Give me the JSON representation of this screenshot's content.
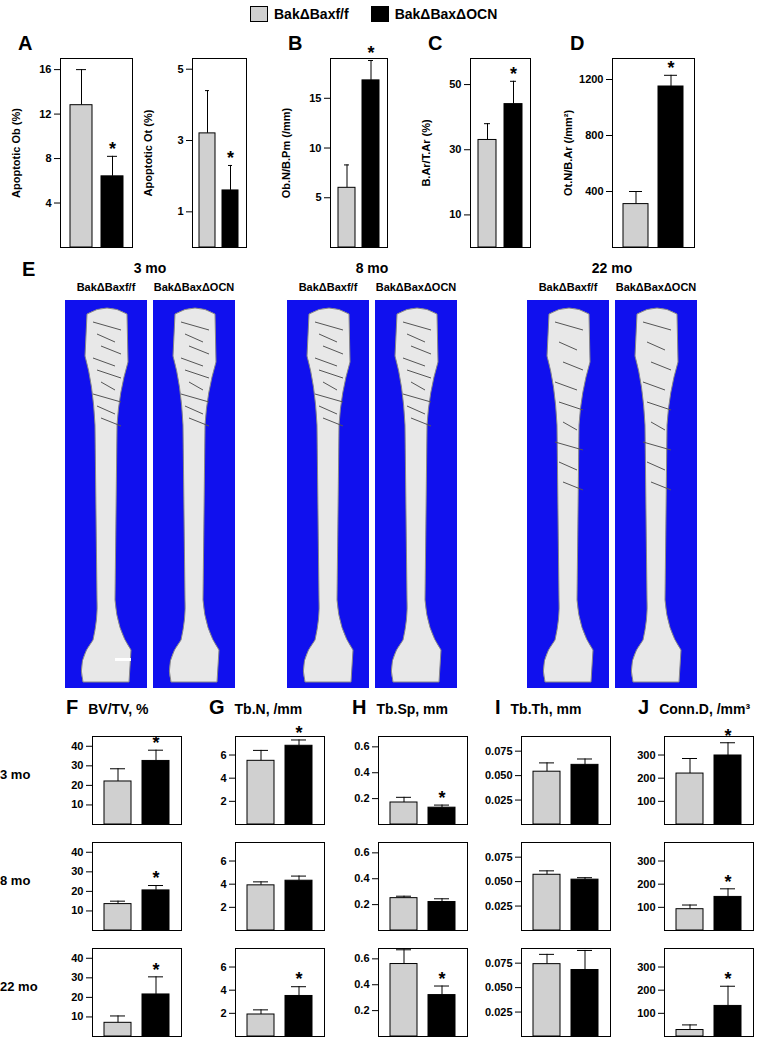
{
  "figure": {
    "legend": [
      {
        "name": "BakΔBaxf/f",
        "color": "#d0d0d0"
      },
      {
        "name": "BakΔBaxΔOCN",
        "color": "#000000"
      }
    ],
    "panel_E": {
      "panel": "E",
      "groups": [
        {
          "age": "3 mo",
          "labels": [
            "BakΔBaxf/f",
            "BakΔBaxΔOCN"
          ]
        },
        {
          "age": "8 mo",
          "labels": [
            "BakΔBaxf/f",
            "BakΔBaxΔOCN"
          ]
        },
        {
          "age": "22 mo",
          "labels": [
            "BakΔBaxf/f",
            "BakΔBaxΔOCN"
          ]
        }
      ]
    }
  },
  "chart_data": [
    {
      "type": "bar",
      "panel": "A",
      "y_label": "Apoptotic Ob (%)",
      "categories": [
        "BakΔBaxf/f",
        "BakΔBaxΔOCN"
      ],
      "colors": [
        "#d0d0d0",
        "#000000"
      ],
      "values": [
        12.8,
        6.4
      ],
      "errors": [
        3.2,
        1.8
      ],
      "annotations": [
        null,
        "*"
      ],
      "ylim": [
        0,
        17
      ],
      "yticks": [
        4,
        8,
        12,
        16
      ],
      "tick_labels": "y"
    },
    {
      "type": "bar",
      "panel": null,
      "y_label": "Apoptotic Ot (%)",
      "categories": [
        "BakΔBaxf/f",
        "BakΔBaxΔOCN"
      ],
      "colors": [
        "#d0d0d0",
        "#000000"
      ],
      "values": [
        3.2,
        1.6
      ],
      "errors": [
        1.2,
        0.7
      ],
      "annotations": [
        null,
        "*"
      ],
      "ylim": [
        0,
        5.3
      ],
      "yticks": [
        1,
        3,
        5
      ],
      "tick_labels": "y"
    },
    {
      "type": "bar",
      "panel": "B",
      "y_label": "Ob.N/B.Pm (/mm)",
      "categories": [
        "BakΔBaxf/f",
        "BakΔBaxΔOCN"
      ],
      "colors": [
        "#d0d0d0",
        "#000000"
      ],
      "values": [
        6.0,
        16.8
      ],
      "errors": [
        2.3,
        2.0
      ],
      "annotations": [
        null,
        "*"
      ],
      "ylim": [
        0,
        19
      ],
      "yticks": [
        5,
        10,
        15
      ],
      "tick_labels": "y"
    },
    {
      "type": "bar",
      "panel": "C",
      "y_label": "B.Ar/T.Ar (%)",
      "categories": [
        "BakΔBaxf/f",
        "BakΔBaxΔOCN"
      ],
      "colors": [
        "#d0d0d0",
        "#000000"
      ],
      "values": [
        33,
        44
      ],
      "errors": [
        5,
        7
      ],
      "annotations": [
        null,
        "*"
      ],
      "ylim": [
        0,
        58
      ],
      "yticks": [
        10,
        30,
        50
      ],
      "tick_labels": "y"
    },
    {
      "type": "bar",
      "panel": "D",
      "y_label": "Ot.N/B.Ar (/mm²)",
      "categories": [
        "BakΔBaxf/f",
        "BakΔBaxΔOCN"
      ],
      "colors": [
        "#d0d0d0",
        "#000000"
      ],
      "values": [
        310,
        1150
      ],
      "errors": [
        90,
        80
      ],
      "annotations": [
        null,
        "*"
      ],
      "ylim": [
        0,
        1350
      ],
      "yticks": [
        400,
        800,
        1200
      ],
      "tick_labels": "y"
    },
    {
      "type": "bar",
      "panel": "F",
      "title": "BV/TV, %",
      "age": "3 mo",
      "categories": [
        "BakΔBaxf/f",
        "BakΔBaxΔOCN"
      ],
      "colors": [
        "#d0d0d0",
        "#000000"
      ],
      "values": [
        22,
        32.5
      ],
      "errors": [
        6.5,
        5.5
      ],
      "annotations": [
        null,
        "*"
      ],
      "ylim": [
        0,
        45
      ],
      "yticks": [
        10,
        20,
        30,
        40
      ],
      "tick_labels": "y"
    },
    {
      "type": "bar",
      "age": "8 mo",
      "categories": [
        "BakΔBaxf/f",
        "BakΔBaxΔOCN"
      ],
      "colors": [
        "#d0d0d0",
        "#000000"
      ],
      "values": [
        13.5,
        20.5
      ],
      "errors": [
        1.5,
        2.5
      ],
      "annotations": [
        null,
        "*"
      ],
      "ylim": [
        0,
        45
      ],
      "yticks": [
        10,
        20,
        30,
        40
      ],
      "tick_labels": "y"
    },
    {
      "type": "bar",
      "age": "22 mo",
      "categories": [
        "BakΔBaxf/f",
        "BakΔBaxΔOCN"
      ],
      "colors": [
        "#d0d0d0",
        "#000000"
      ],
      "values": [
        7,
        21.5
      ],
      "errors": [
        3.5,
        9
      ],
      "annotations": [
        null,
        "*"
      ],
      "ylim": [
        0,
        45
      ],
      "yticks": [
        10,
        20,
        30,
        40
      ],
      "tick_labels": "y"
    },
    {
      "type": "bar",
      "panel": "G",
      "title": "Tb.N, /mm",
      "age": "3 mo",
      "categories": [
        "BakΔBaxf/f",
        "BakΔBaxΔOCN"
      ],
      "colors": [
        "#d0d0d0",
        "#000000"
      ],
      "values": [
        5.5,
        6.8
      ],
      "errors": [
        0.9,
        0.5
      ],
      "annotations": [
        null,
        "*"
      ],
      "ylim": [
        0,
        7.6
      ],
      "yticks": [
        2,
        4,
        6
      ],
      "tick_labels": "y"
    },
    {
      "type": "bar",
      "age": "8 mo",
      "categories": [
        "BakΔBaxf/f",
        "BakΔBaxΔOCN"
      ],
      "colors": [
        "#d0d0d0",
        "#000000"
      ],
      "values": [
        3.9,
        4.3
      ],
      "errors": [
        0.3,
        0.4
      ],
      "annotations": [
        null,
        null
      ],
      "ylim": [
        0,
        7.6
      ],
      "yticks": [
        2,
        4,
        6
      ],
      "tick_labels": "y"
    },
    {
      "type": "bar",
      "age": "22 mo",
      "categories": [
        "BakΔBaxf/f",
        "BakΔBaxΔOCN"
      ],
      "colors": [
        "#d0d0d0",
        "#000000"
      ],
      "values": [
        1.9,
        3.5
      ],
      "errors": [
        0.4,
        0.8
      ],
      "annotations": [
        null,
        "*"
      ],
      "ylim": [
        0,
        7.6
      ],
      "yticks": [
        2,
        4,
        6
      ],
      "tick_labels": "y"
    },
    {
      "type": "bar",
      "panel": "H",
      "title": "Tb.Sp, mm",
      "age": "3 mo",
      "categories": [
        "BakΔBaxf/f",
        "BakΔBaxΔOCN"
      ],
      "colors": [
        "#d0d0d0",
        "#000000"
      ],
      "values": [
        0.17,
        0.13
      ],
      "errors": [
        0.04,
        0.02
      ],
      "annotations": [
        null,
        "*"
      ],
      "ylim": [
        0,
        0.68
      ],
      "yticks": [
        0.2,
        0.4,
        0.6
      ],
      "tick_labels": "y"
    },
    {
      "type": "bar",
      "age": "8 mo",
      "categories": [
        "BakΔBaxf/f",
        "BakΔBaxΔOCN"
      ],
      "colors": [
        "#d0d0d0",
        "#000000"
      ],
      "values": [
        0.25,
        0.22
      ],
      "errors": [
        0.015,
        0.025
      ],
      "annotations": [
        null,
        null
      ],
      "ylim": [
        0,
        0.68
      ],
      "yticks": [
        0.2,
        0.4,
        0.6
      ],
      "tick_labels": "y"
    },
    {
      "type": "bar",
      "age": "22 mo",
      "categories": [
        "BakΔBaxf/f",
        "BakΔBaxΔOCN"
      ],
      "colors": [
        "#d0d0d0",
        "#000000"
      ],
      "values": [
        0.56,
        0.32
      ],
      "errors": [
        0.11,
        0.07
      ],
      "annotations": [
        null,
        "*"
      ],
      "ylim": [
        0,
        0.68
      ],
      "yticks": [
        0.2,
        0.4,
        0.6
      ],
      "tick_labels": "y"
    },
    {
      "type": "bar",
      "panel": "I",
      "title": "Tb.Th, mm",
      "age": "3 mo",
      "categories": [
        "BakΔBaxf/f",
        "BakΔBaxΔOCN"
      ],
      "colors": [
        "#d0d0d0",
        "#000000"
      ],
      "values": [
        0.054,
        0.061
      ],
      "errors": [
        0.009,
        0.006
      ],
      "annotations": [
        null,
        null
      ],
      "ylim": [
        0,
        0.09
      ],
      "yticks": [
        0.025,
        {
          "value": 0.05,
          "label": "0.050"
        },
        0.075
      ],
      "tick_labels": "y"
    },
    {
      "type": "bar",
      "age": "8 mo",
      "categories": [
        "BakΔBaxf/f",
        "BakΔBaxΔOCN"
      ],
      "colors": [
        "#d0d0d0",
        "#000000"
      ],
      "values": [
        0.057,
        0.052
      ],
      "errors": [
        0.004,
        0.002
      ],
      "annotations": [
        null,
        null
      ],
      "ylim": [
        0,
        0.09
      ],
      "yticks": [
        0.025,
        {
          "value": 0.05,
          "label": "0.050"
        },
        0.075
      ],
      "tick_labels": "y"
    },
    {
      "type": "bar",
      "age": "22 mo",
      "categories": [
        "BakΔBaxf/f",
        "BakΔBaxΔOCN"
      ],
      "colors": [
        "#d0d0d0",
        "#000000"
      ],
      "values": [
        0.074,
        0.068
      ],
      "errors": [
        0.01,
        0.02
      ],
      "annotations": [
        null,
        null
      ],
      "ylim": [
        0,
        0.09
      ],
      "yticks": [
        0.025,
        {
          "value": 0.05,
          "label": "0.050"
        },
        0.075
      ],
      "tick_labels": "y"
    },
    {
      "type": "bar",
      "panel": "J",
      "title": "Conn.D, /mm³",
      "age": "3 mo",
      "categories": [
        "BakΔBaxf/f",
        "BakΔBaxΔOCN"
      ],
      "colors": [
        "#d0d0d0",
        "#000000"
      ],
      "values": [
        220,
        298
      ],
      "errors": [
        65,
        55
      ],
      "annotations": [
        null,
        "*"
      ],
      "ylim": [
        0,
        380
      ],
      "yticks": [
        100,
        200,
        300
      ],
      "tick_labels": "y"
    },
    {
      "type": "bar",
      "age": "8 mo",
      "categories": [
        "BakΔBaxf/f",
        "BakΔBaxΔOCN"
      ],
      "colors": [
        "#d0d0d0",
        "#000000"
      ],
      "values": [
        92,
        145
      ],
      "errors": [
        18,
        35
      ],
      "annotations": [
        null,
        "*"
      ],
      "ylim": [
        0,
        380
      ],
      "yticks": [
        100,
        200,
        300
      ],
      "tick_labels": "y"
    },
    {
      "type": "bar",
      "age": "22 mo",
      "categories": [
        "BakΔBaxf/f",
        "BakΔBaxΔOCN"
      ],
      "colors": [
        "#d0d0d0",
        "#000000"
      ],
      "values": [
        28,
        132
      ],
      "errors": [
        22,
        85
      ],
      "annotations": [
        null,
        "*"
      ],
      "ylim": [
        0,
        380
      ],
      "yticks": [
        100,
        200,
        300
      ],
      "tick_labels": "y"
    }
  ]
}
